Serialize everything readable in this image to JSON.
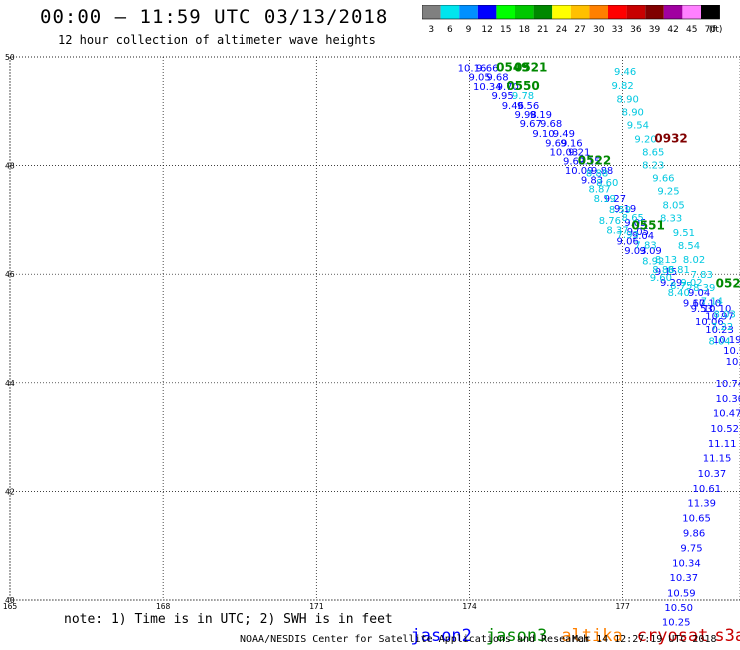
{
  "header": {
    "title": "00:00 — 11:59 UTC 03/13/2018",
    "subtitle": "12 hour collection of altimeter wave heights"
  },
  "colorbar": {
    "unit": "(ft)",
    "ticks": [
      "3",
      "6",
      "9",
      "12",
      "15",
      "18",
      "21",
      "24",
      "27",
      "30",
      "33",
      "36",
      "39",
      "42",
      "45",
      "70"
    ],
    "colors": [
      "#808080",
      "#00e5ee",
      "#0090ff",
      "#0000ff",
      "#00ff00",
      "#00c800",
      "#008800",
      "#ffff00",
      "#ffc000",
      "#ff8000",
      "#ff0000",
      "#c80000",
      "#800000",
      "#a000a0",
      "#ff80ff",
      "#000000"
    ]
  },
  "footer": {
    "note": "note: 1) Time is in UTC; 2) SWH is in feet",
    "credit": "NOAA/NESDIS Center for Satellite Applications and Research",
    "timestamp": "Mar 14 12:27:19 UTC 2018"
  },
  "legend": [
    {
      "name": "jason2",
      "color": "#0000ff"
    },
    {
      "name": "jason3",
      "color": "#008800"
    },
    {
      "name": "altika",
      "color": "#ff8000"
    },
    {
      "name": "cryosat",
      "color": "#c80000"
    },
    {
      "name": "s3a",
      "color": "#c80000"
    }
  ],
  "chart_data": {
    "type": "scatter",
    "xlim": [
      165,
      179.3
    ],
    "ylim": [
      40,
      50
    ],
    "xticks": [
      "165",
      "168",
      "171",
      "174",
      "177"
    ],
    "yticks": [
      "50",
      "48",
      "46",
      "44",
      "42",
      "40"
    ],
    "grid": true,
    "colors": {
      "jason2": "#0000ff",
      "jason3": "#00c8e0",
      "jason3_time": "#008800",
      "cryosat": "#800000"
    },
    "series": [
      {
        "name": "jason2",
        "points": [
          {
            "x": 174.05,
            "y": 49.81,
            "label": "10.16"
          },
          {
            "x": 174.35,
            "y": 49.81,
            "label": "9.66"
          },
          {
            "x": 174.2,
            "y": 49.64,
            "label": "9.05"
          },
          {
            "x": 174.55,
            "y": 49.64,
            "label": "9.68"
          },
          {
            "x": 174.35,
            "y": 49.47,
            "label": "10.34"
          },
          {
            "x": 174.75,
            "y": 49.47,
            "label": "9.70"
          },
          {
            "x": 174.65,
            "y": 49.3,
            "label": "9.95"
          },
          {
            "x": 174.85,
            "y": 49.12,
            "label": "9.46"
          },
          {
            "x": 175.15,
            "y": 49.12,
            "label": "9.56"
          },
          {
            "x": 175.1,
            "y": 48.95,
            "label": "9.98"
          },
          {
            "x": 175.4,
            "y": 48.95,
            "label": "9.19"
          },
          {
            "x": 175.2,
            "y": 48.78,
            "label": "9.67"
          },
          {
            "x": 175.6,
            "y": 48.78,
            "label": "9.68"
          },
          {
            "x": 175.45,
            "y": 48.6,
            "label": "9.10"
          },
          {
            "x": 175.85,
            "y": 48.6,
            "label": "9.49"
          },
          {
            "x": 175.7,
            "y": 48.43,
            "label": "9.69"
          },
          {
            "x": 176.0,
            "y": 48.43,
            "label": "9.16"
          },
          {
            "x": 175.85,
            "y": 48.26,
            "label": "10.03"
          },
          {
            "x": 176.15,
            "y": 48.26,
            "label": "9.21"
          },
          {
            "x": 176.05,
            "y": 48.09,
            "label": "9.62"
          },
          {
            "x": 176.35,
            "y": 48.09,
            "label": "9.15"
          },
          {
            "x": 176.15,
            "y": 47.92,
            "label": "10.09"
          },
          {
            "x": 176.6,
            "y": 47.92,
            "label": "9.88"
          },
          {
            "x": 176.4,
            "y": 47.74,
            "label": "9.83"
          },
          {
            "x": 176.85,
            "y": 47.4,
            "label": "9.27"
          },
          {
            "x": 177.05,
            "y": 47.22,
            "label": "9.19"
          },
          {
            "x": 177.25,
            "y": 46.96,
            "label": "9.05"
          },
          {
            "x": 177.3,
            "y": 46.8,
            "label": "9.05"
          },
          {
            "x": 177.4,
            "y": 46.72,
            "label": "9.04"
          },
          {
            "x": 177.1,
            "y": 46.62,
            "label": "9.06"
          },
          {
            "x": 177.25,
            "y": 46.45,
            "label": "9.03"
          },
          {
            "x": 177.55,
            "y": 46.45,
            "label": "9.09"
          },
          {
            "x": 177.85,
            "y": 46.06,
            "label": "9.15"
          },
          {
            "x": 177.95,
            "y": 45.86,
            "label": "9.29"
          },
          {
            "x": 178.5,
            "y": 45.67,
            "label": "9.04"
          },
          {
            "x": 178.4,
            "y": 45.48,
            "label": "9.67"
          },
          {
            "x": 178.65,
            "y": 45.48,
            "label": "10.10"
          },
          {
            "x": 178.55,
            "y": 45.38,
            "label": "9.53"
          },
          {
            "x": 178.85,
            "y": 45.38,
            "label": "10.10"
          },
          {
            "x": 178.9,
            "y": 45.24,
            "label": "10.97"
          },
          {
            "x": 178.7,
            "y": 45.14,
            "label": "10.06"
          },
          {
            "x": 178.9,
            "y": 44.99,
            "label": "10.23"
          },
          {
            "x": 179.05,
            "y": 44.81,
            "label": "10.19"
          },
          {
            "x": 179.25,
            "y": 44.6,
            "label": "10.91"
          },
          {
            "x": 179.3,
            "y": 44.4,
            "label": "10.29"
          },
          {
            "x": 179.1,
            "y": 44.0,
            "label": "10.74"
          },
          {
            "x": 179.1,
            "y": 43.72,
            "label": "10.30"
          },
          {
            "x": 179.05,
            "y": 43.45,
            "label": "10.47"
          },
          {
            "x": 179.0,
            "y": 43.17,
            "label": "10.52"
          },
          {
            "x": 178.95,
            "y": 42.89,
            "label": "11.11"
          },
          {
            "x": 178.85,
            "y": 42.62,
            "label": "11.15"
          },
          {
            "x": 178.75,
            "y": 42.34,
            "label": "10.37"
          },
          {
            "x": 178.65,
            "y": 42.06,
            "label": "10.61"
          },
          {
            "x": 178.55,
            "y": 41.8,
            "label": "11.39"
          },
          {
            "x": 178.45,
            "y": 41.52,
            "label": "10.65"
          },
          {
            "x": 178.4,
            "y": 41.24,
            "label": "9.86"
          },
          {
            "x": 178.35,
            "y": 40.97,
            "label": "9.75"
          },
          {
            "x": 178.25,
            "y": 40.69,
            "label": "10.34"
          },
          {
            "x": 178.2,
            "y": 40.42,
            "label": "10.37"
          },
          {
            "x": 178.15,
            "y": 40.14,
            "label": "10.59"
          },
          {
            "x": 178.1,
            "y": 39.87,
            "label": "10.50"
          },
          {
            "x": 178.05,
            "y": 39.6,
            "label": "10.25"
          }
        ]
      },
      {
        "name": "jason3",
        "points": [
          {
            "x": 177.05,
            "y": 49.74,
            "label": "9.46"
          },
          {
            "x": 177.0,
            "y": 49.48,
            "label": "9.82"
          },
          {
            "x": 177.1,
            "y": 49.24,
            "label": "8.90"
          },
          {
            "x": 177.2,
            "y": 49.0,
            "label": "8.90"
          },
          {
            "x": 177.3,
            "y": 48.76,
            "label": "9.54"
          },
          {
            "x": 177.45,
            "y": 48.5,
            "label": "9.20"
          },
          {
            "x": 177.6,
            "y": 48.26,
            "label": "8.65"
          },
          {
            "x": 177.6,
            "y": 48.02,
            "label": "8.23"
          },
          {
            "x": 177.8,
            "y": 47.78,
            "label": "9.66"
          },
          {
            "x": 177.9,
            "y": 47.54,
            "label": "9.25"
          },
          {
            "x": 178.0,
            "y": 47.28,
            "label": "8.05"
          },
          {
            "x": 177.95,
            "y": 47.04,
            "label": "8.33"
          },
          {
            "x": 178.2,
            "y": 46.78,
            "label": "9.51"
          },
          {
            "x": 178.3,
            "y": 46.54,
            "label": "8.54"
          },
          {
            "x": 178.4,
            "y": 46.28,
            "label": "8.02"
          },
          {
            "x": 178.55,
            "y": 46.0,
            "label": "7.83"
          },
          {
            "x": 178.6,
            "y": 45.76,
            "label": "8.39"
          },
          {
            "x": 178.75,
            "y": 45.52,
            "label": "7.14"
          },
          {
            "x": 179.0,
            "y": 45.28,
            "label": "8.03"
          },
          {
            "x": 178.95,
            "y": 45.05,
            "label": "7.22"
          },
          {
            "x": 178.9,
            "y": 44.78,
            "label": "8.04"
          },
          {
            "x": 175.05,
            "y": 49.3,
            "label": "9.78"
          },
          {
            "x": 176.5,
            "y": 47.87,
            "label": "8.88"
          },
          {
            "x": 176.7,
            "y": 47.7,
            "label": "8.60"
          },
          {
            "x": 176.55,
            "y": 47.58,
            "label": "8.87"
          },
          {
            "x": 176.65,
            "y": 47.4,
            "label": "8.19"
          },
          {
            "x": 176.95,
            "y": 47.2,
            "label": "8.59"
          },
          {
            "x": 177.2,
            "y": 47.05,
            "label": "8.65"
          },
          {
            "x": 176.75,
            "y": 47.0,
            "label": "8.76"
          },
          {
            "x": 176.9,
            "y": 46.82,
            "label": "8.37"
          },
          {
            "x": 177.1,
            "y": 46.74,
            "label": "7.93"
          },
          {
            "x": 177.45,
            "y": 46.55,
            "label": "7.83"
          },
          {
            "x": 177.85,
            "y": 46.28,
            "label": "8.13"
          },
          {
            "x": 177.6,
            "y": 46.25,
            "label": "8.92"
          },
          {
            "x": 178.1,
            "y": 46.1,
            "label": "8.81"
          },
          {
            "x": 177.8,
            "y": 46.1,
            "label": "8.86"
          },
          {
            "x": 177.75,
            "y": 45.95,
            "label": "9.60"
          },
          {
            "x": 178.35,
            "y": 45.86,
            "label": "9.02"
          },
          {
            "x": 178.15,
            "y": 45.8,
            "label": "8.75"
          },
          {
            "x": 178.1,
            "y": 45.67,
            "label": "8.40"
          }
        ]
      },
      {
        "name": "jason3-time",
        "points": [
          {
            "x": 174.85,
            "y": 49.81,
            "label": "0549"
          },
          {
            "x": 175.2,
            "y": 49.81,
            "label": "0521"
          },
          {
            "x": 175.05,
            "y": 49.47,
            "label": "0550"
          },
          {
            "x": 176.45,
            "y": 48.09,
            "label": "0522"
          },
          {
            "x": 177.5,
            "y": 46.9,
            "label": "0551"
          },
          {
            "x": 179.15,
            "y": 45.83,
            "label": "0523"
          }
        ]
      },
      {
        "name": "cryosat",
        "points": [
          {
            "x": 177.95,
            "y": 48.5,
            "label": "0932"
          }
        ]
      }
    ]
  }
}
